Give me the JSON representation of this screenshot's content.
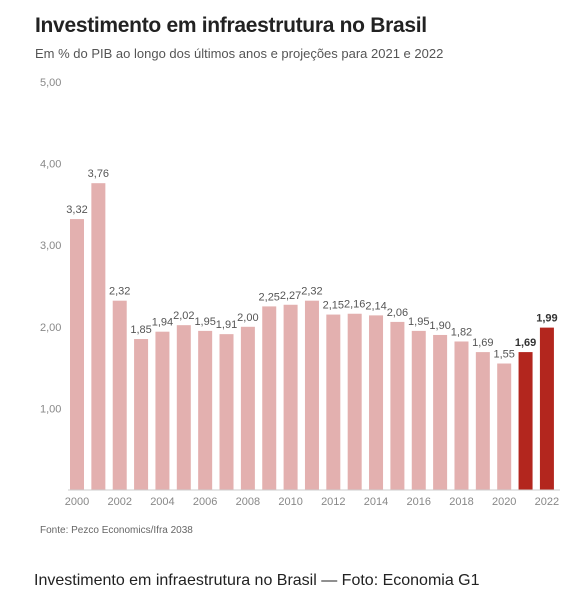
{
  "header": {
    "title": "Investimento em infraestrutura no Brasil",
    "subtitle": "Em % do PIB ao longo dos últimos anos e projeções para 2021 e 2022"
  },
  "source": "Fonte: Pezco Economics/Ifra 2038",
  "caption": "Investimento em infraestrutura no Brasil — Foto: Economia G1",
  "colors": {
    "historic": "#e3b0af",
    "projection": "#b3261e",
    "axis": "#cccccc"
  },
  "chart_data": {
    "type": "bar",
    "categories": [
      "2000",
      "2001",
      "2002",
      "2003",
      "2004",
      "2005",
      "2006",
      "2007",
      "2008",
      "2009",
      "2010",
      "2011",
      "2012",
      "2013",
      "2014",
      "2015",
      "2016",
      "2017",
      "2018",
      "2019",
      "2020",
      "2021",
      "2022"
    ],
    "values": [
      3.32,
      3.76,
      2.32,
      1.85,
      1.94,
      2.02,
      1.95,
      1.91,
      2.0,
      2.25,
      2.27,
      2.32,
      2.15,
      2.16,
      2.14,
      2.06,
      1.95,
      1.9,
      1.82,
      1.69,
      1.55,
      1.69,
      1.99
    ],
    "value_labels": [
      "3,32",
      "3,76",
      "2,32",
      "1,85",
      "1,94",
      "2,02",
      "1,95",
      "1,91",
      "2,00",
      "2,25",
      "2,27",
      "2,32",
      "2,15",
      "2,16",
      "2,14",
      "2,06",
      "1,95",
      "1,90",
      "1,82",
      "1,69",
      "1,55",
      "1,69",
      "1,99"
    ],
    "projection_categories": [
      "2021",
      "2022"
    ],
    "xtick_labels": [
      "2000",
      "2002",
      "2004",
      "2006",
      "2008",
      "2010",
      "2012",
      "2014",
      "2016",
      "2018",
      "2020",
      "2022"
    ],
    "yticks": [
      1,
      2,
      3,
      4,
      5
    ],
    "ytick_labels": [
      "1,00",
      "2,00",
      "3,00",
      "4,00",
      "5,00"
    ],
    "ylim": [
      0,
      5
    ],
    "grid": false,
    "title": "Investimento em infraestrutura no Brasil",
    "subtitle": "Em % do PIB ao longo dos últimos anos e projeções para 2021 e 2022"
  }
}
